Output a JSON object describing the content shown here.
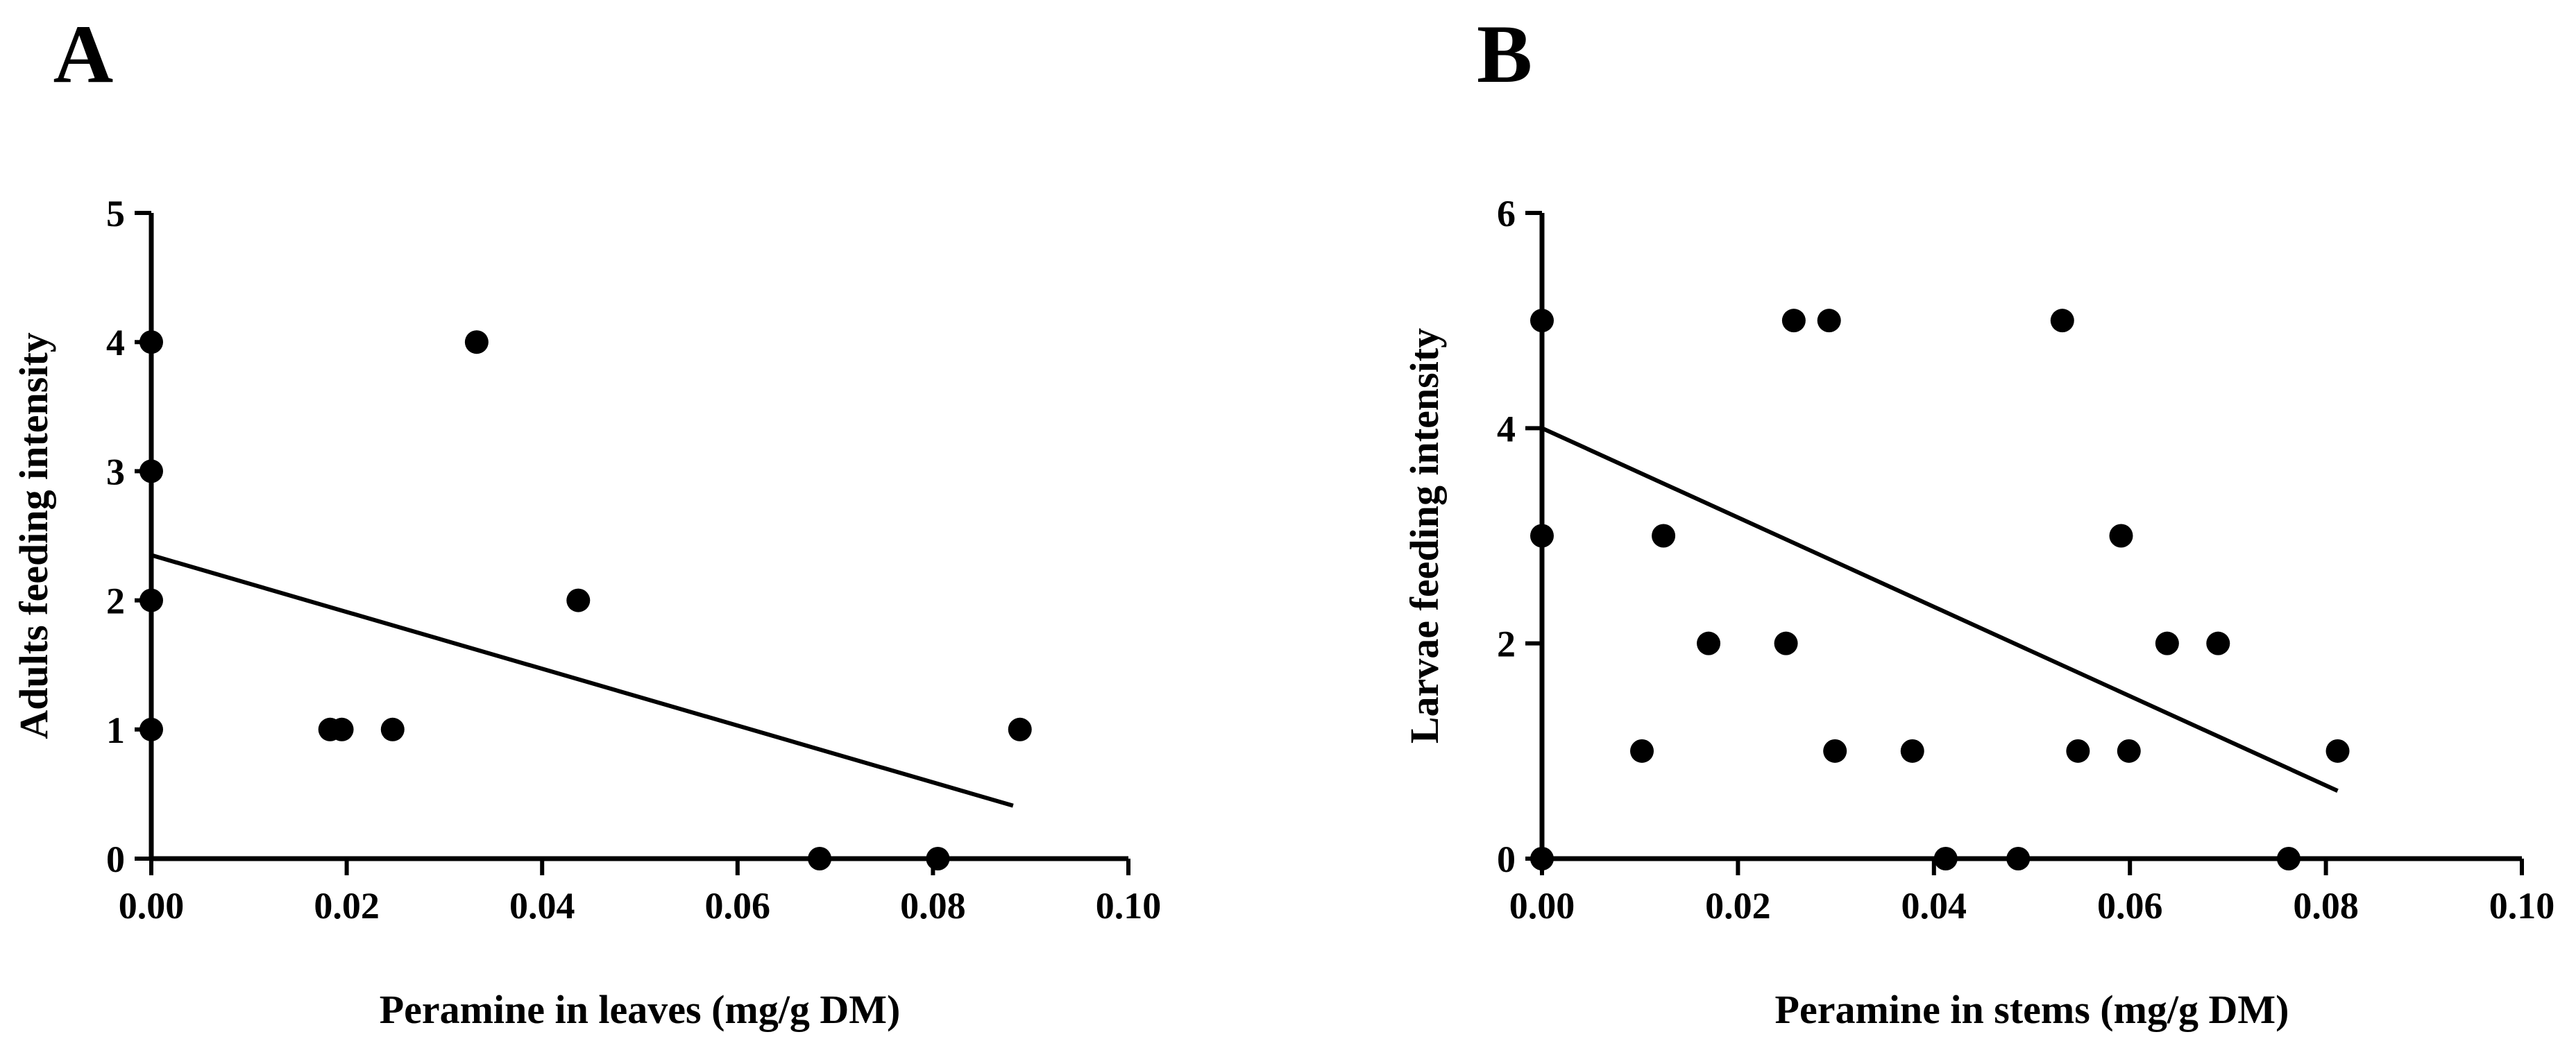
{
  "chart_data": [
    {
      "type": "scatter",
      "panel_label": "A",
      "xlabel": "Peramine in leaves (mg/g DM)",
      "ylabel": "Adults feeding intensity",
      "xlim": [
        0,
        0.1
      ],
      "ylim": [
        0,
        5
      ],
      "x_ticks": [
        "0.00",
        "0.02",
        "0.04",
        "0.06",
        "0.08",
        "0.10"
      ],
      "y_ticks": [
        "0",
        "1",
        "2",
        "3",
        "4",
        "5"
      ],
      "grid": false,
      "points": [
        {
          "x": 0.0,
          "y": 4
        },
        {
          "x": 0.0,
          "y": 3
        },
        {
          "x": 0.0,
          "y": 2
        },
        {
          "x": 0.0,
          "y": 1
        },
        {
          "x": 0.0183,
          "y": 1
        },
        {
          "x": 0.0195,
          "y": 1
        },
        {
          "x": 0.0247,
          "y": 1
        },
        {
          "x": 0.0333,
          "y": 4
        },
        {
          "x": 0.0437,
          "y": 2
        },
        {
          "x": 0.0684,
          "y": 0
        },
        {
          "x": 0.0805,
          "y": 0
        },
        {
          "x": 0.0889,
          "y": 1
        }
      ],
      "regression_line": {
        "x": [
          0.0,
          0.0882
        ],
        "y": [
          2.35,
          0.41
        ]
      }
    },
    {
      "type": "scatter",
      "panel_label": "B",
      "xlabel": "Peramine in stems (mg/g DM)",
      "ylabel": "Larvae feeding intensity",
      "xlim": [
        0,
        0.1
      ],
      "ylim": [
        0,
        6
      ],
      "x_ticks": [
        "0.00",
        "0.02",
        "0.04",
        "0.06",
        "0.08",
        "0.10"
      ],
      "y_ticks": [
        "0",
        "2",
        "4",
        "6"
      ],
      "grid": false,
      "points": [
        {
          "x": 0.0,
          "y": 5
        },
        {
          "x": 0.0,
          "y": 3
        },
        {
          "x": 0.0,
          "y": 0
        },
        {
          "x": 0.0102,
          "y": 1
        },
        {
          "x": 0.0124,
          "y": 3
        },
        {
          "x": 0.017,
          "y": 2
        },
        {
          "x": 0.0249,
          "y": 2
        },
        {
          "x": 0.0257,
          "y": 5
        },
        {
          "x": 0.0293,
          "y": 5
        },
        {
          "x": 0.0299,
          "y": 1
        },
        {
          "x": 0.0378,
          "y": 1
        },
        {
          "x": 0.0412,
          "y": 0
        },
        {
          "x": 0.0486,
          "y": 0
        },
        {
          "x": 0.0531,
          "y": 5
        },
        {
          "x": 0.0547,
          "y": 1
        },
        {
          "x": 0.0591,
          "y": 3
        },
        {
          "x": 0.0599,
          "y": 1
        },
        {
          "x": 0.0638,
          "y": 2
        },
        {
          "x": 0.069,
          "y": 2
        },
        {
          "x": 0.0762,
          "y": 0
        },
        {
          "x": 0.0812,
          "y": 1
        }
      ],
      "regression_line": {
        "x": [
          0.0,
          0.0812
        ],
        "y": [
          4.0,
          0.63
        ]
      }
    }
  ]
}
